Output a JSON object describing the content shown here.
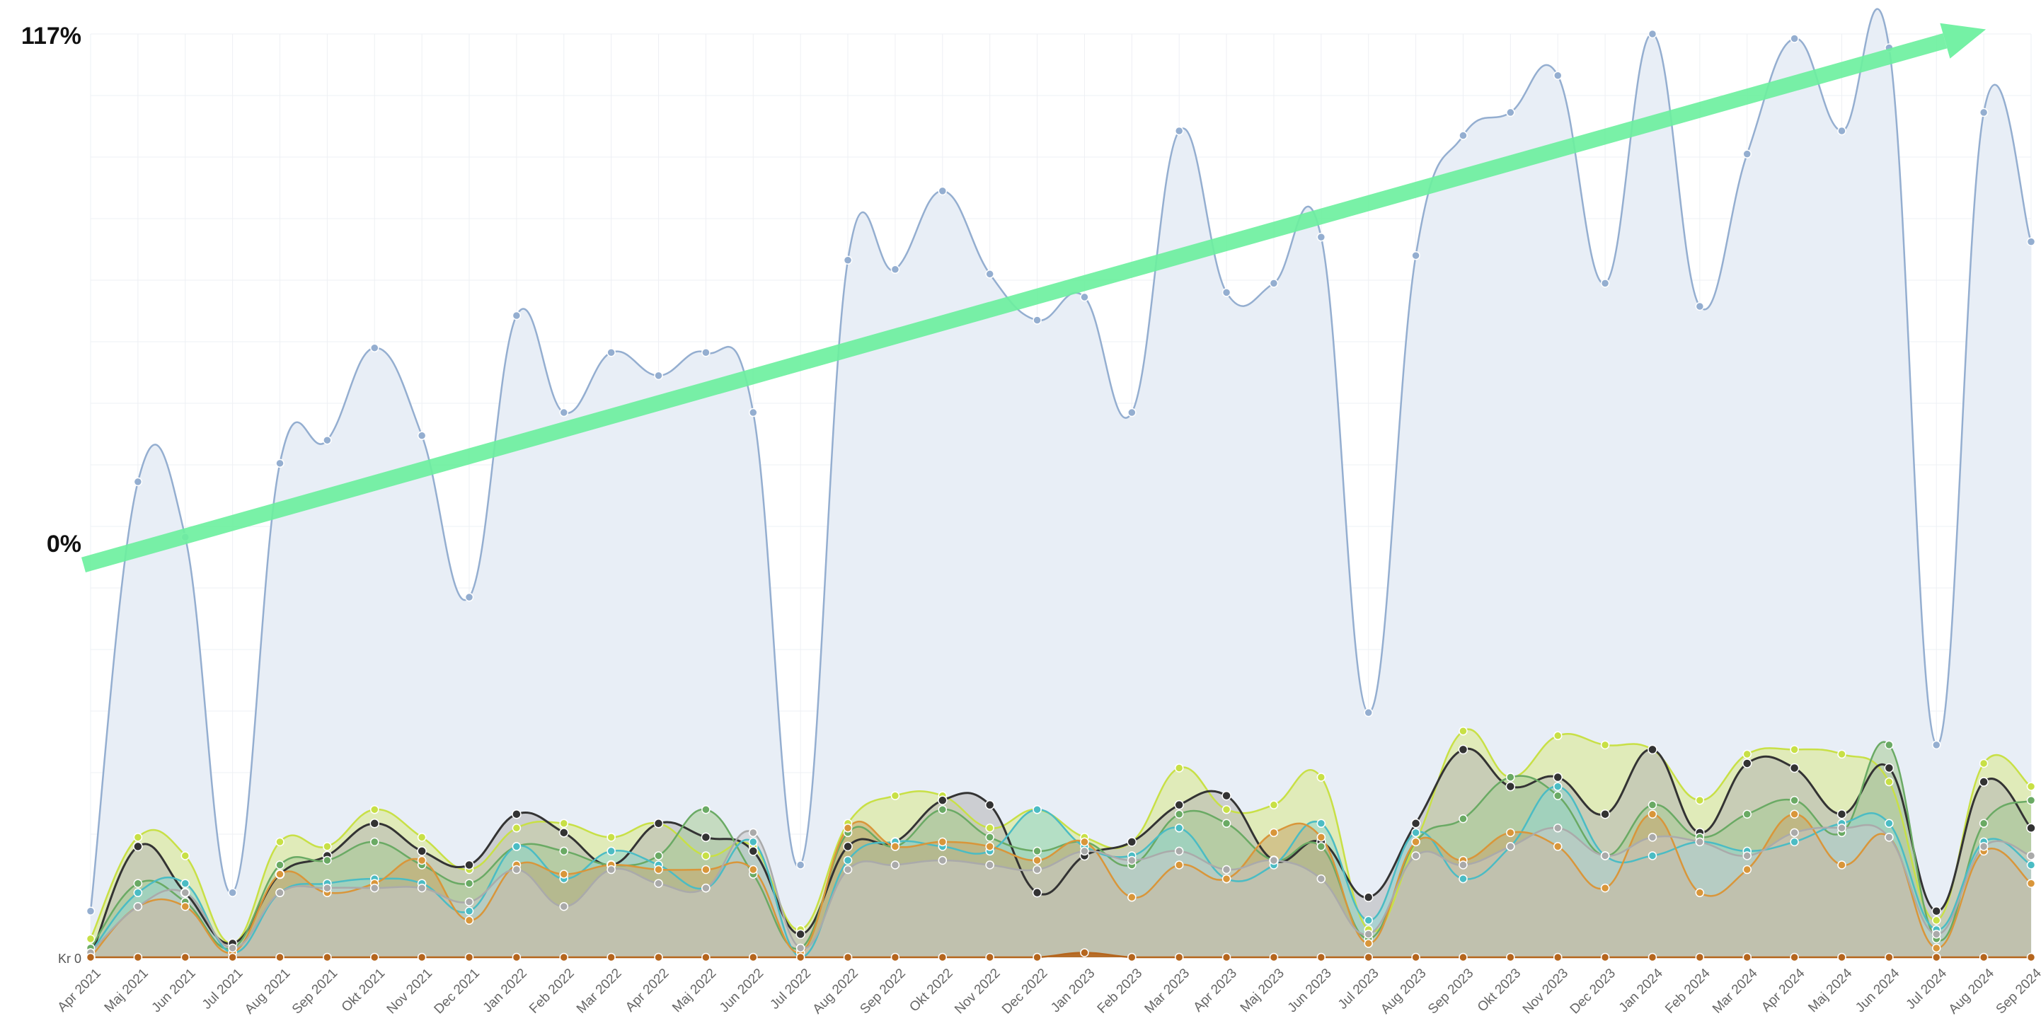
{
  "chart_data": {
    "type": "area",
    "title": "",
    "xlabel": "",
    "ylabel": "",
    "y_axis_labels": {
      "top": "117%",
      "middle": "0%",
      "bottom": "Kr 0"
    },
    "grid": true,
    "legend": "none",
    "categories": [
      "Apr 2021",
      "Maj 2021",
      "Jun 2021",
      "Jul 2021",
      "Aug 2021",
      "Sep 2021",
      "Okt 2021",
      "Nov 2021",
      "Dec 2021",
      "Jan 2022",
      "Feb 2022",
      "Mar 2022",
      "Apr 2022",
      "Maj 2022",
      "Jun 2022",
      "Jul 2022",
      "Aug 2022",
      "Sep 2022",
      "Okt 2022",
      "Nov 2022",
      "Dec 2022",
      "Jan 2023",
      "Feb 2023",
      "Mar 2023",
      "Apr 2023",
      "Maj 2023",
      "Jun 2023",
      "Jul 2023",
      "Aug 2023",
      "Sep 2023",
      "Okt 2023",
      "Nov 2023",
      "Dec 2023",
      "Jan 2024",
      "Feb 2024",
      "Mar 2024",
      "Apr 2024",
      "Maj 2024",
      "Jun 2024",
      "Jul 2024",
      "Aug 2024",
      "Sep 2024"
    ],
    "ylim": [
      0,
      100
    ],
    "series": [
      {
        "color": "#94aed0",
        "fill": "#e8eef6",
        "values": [
          5,
          51.5,
          45.5,
          7,
          53.5,
          56,
          66,
          56.5,
          39,
          69.5,
          59,
          65.5,
          63,
          65.5,
          59,
          10,
          75.5,
          74.5,
          83,
          74,
          69,
          71.5,
          59,
          89.5,
          72,
          73,
          78,
          26.5,
          76,
          89,
          91.5,
          95.5,
          73,
          100,
          70.5,
          87,
          99.5,
          89.5,
          98.5,
          23,
          91.5,
          77.5
        ]
      },
      {
        "color": "#c8e046",
        "fill": "#d8ea86",
        "values": [
          2,
          13,
          11,
          1.5,
          12.5,
          12,
          16,
          13,
          9.5,
          14,
          14.5,
          13,
          14.5,
          11,
          12,
          3,
          14.5,
          17.5,
          17.5,
          14,
          16,
          13,
          12.5,
          20.5,
          16,
          16.5,
          19.5,
          3,
          12.5,
          24.5,
          19.5,
          24,
          23,
          22.5,
          17,
          22,
          22.5,
          22,
          19,
          4,
          21,
          18.5
        ]
      },
      {
        "color": "#333333",
        "fill": "#b4b4b4",
        "values": [
          0,
          12,
          7,
          1.5,
          9,
          11,
          14.5,
          11.5,
          10,
          15.5,
          13.5,
          10,
          14.5,
          13,
          11.5,
          2.5,
          12,
          12.5,
          17,
          16.5,
          7,
          11,
          12.5,
          16.5,
          17.5,
          10.5,
          12.5,
          6.5,
          14.5,
          22.5,
          18.5,
          19.5,
          15.5,
          22.5,
          13.5,
          21,
          20.5,
          15.5,
          20.5,
          5,
          19,
          14
        ]
      },
      {
        "color": "#6aaa64",
        "fill": "#a7cc95",
        "values": [
          1,
          8,
          6,
          1,
          10,
          10.5,
          12.5,
          10,
          8,
          12,
          11.5,
          10,
          11,
          16,
          9,
          1,
          13.5,
          12,
          16,
          13,
          11.5,
          12.5,
          10,
          15.5,
          14.5,
          10.5,
          12,
          2,
          12.5,
          15,
          19.5,
          17.5,
          11,
          16.5,
          13,
          15.5,
          17,
          13.5,
          23,
          2,
          14.5,
          17
        ]
      },
      {
        "color": "#4bbcc4",
        "fill": "#8fd6cf",
        "values": [
          0.5,
          7,
          8,
          0.5,
          7,
          8,
          8.5,
          8,
          5,
          12,
          8.5,
          11.5,
          10,
          7.5,
          12.5,
          0,
          10.5,
          12.5,
          12,
          11.5,
          16,
          12,
          11,
          14,
          8.5,
          10,
          14.5,
          4,
          13.5,
          8.5,
          12,
          18.5,
          11,
          11,
          12.5,
          11.5,
          12.5,
          14.5,
          14.5,
          3,
          12.5,
          10
        ]
      },
      {
        "color": "#d9963a",
        "fill": "#c7a56a",
        "values": [
          0,
          5.5,
          5.5,
          0.5,
          9,
          7,
          8,
          10.5,
          4,
          10,
          9,
          10,
          9.5,
          9.5,
          9.5,
          0.5,
          14,
          12,
          12.5,
          12,
          10.5,
          12.5,
          6.5,
          10,
          8.5,
          13.5,
          13,
          1.5,
          12.5,
          10.5,
          13.5,
          12,
          7.5,
          15.5,
          7,
          9.5,
          15.5,
          10,
          13,
          1,
          11.5,
          8
        ]
      },
      {
        "color": "#aaaaaa",
        "fill": "#c8c8c8",
        "values": [
          0.5,
          5.5,
          7,
          1,
          7,
          7.5,
          7.5,
          7.5,
          6,
          9.5,
          5.5,
          9.5,
          8,
          7.5,
          13.5,
          1,
          9.5,
          10,
          10.5,
          10,
          9.5,
          11.5,
          10.5,
          11.5,
          9.5,
          10.5,
          8.5,
          2.5,
          11,
          10,
          12,
          14,
          11,
          13,
          12.5,
          11,
          13.5,
          14,
          13,
          2.5,
          12,
          11
        ]
      },
      {
        "color": "#b5651d",
        "fill": "#b5651d",
        "values": [
          0,
          0,
          0,
          0,
          0,
          0,
          0,
          0,
          0,
          0,
          0,
          0,
          0,
          0,
          0,
          0,
          0,
          0,
          0,
          0,
          0,
          0.5,
          0,
          0,
          0,
          0,
          0,
          0,
          0,
          0,
          0,
          0,
          0,
          0,
          0,
          0,
          0,
          0,
          0,
          0,
          0,
          0
        ]
      }
    ],
    "annotations": [
      {
        "type": "arrow",
        "color": "#6ef0a0",
        "direction": "up-right",
        "from": [
          "Apr 2021",
          42.5
        ],
        "to": [
          "Aug 2024",
          100.5
        ]
      }
    ]
  }
}
